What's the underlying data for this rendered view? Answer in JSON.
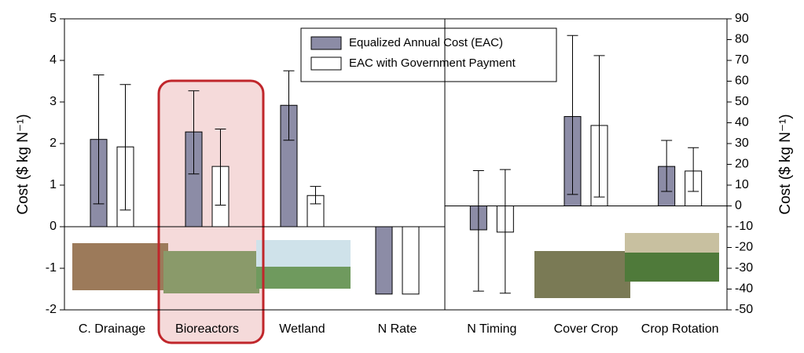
{
  "chart_data": [
    {
      "type": "bar",
      "ylabel": "Cost ($ kg N⁻¹)",
      "categories": [
        "C. Drainage",
        "Bioreactors",
        "Wetland",
        "N Rate"
      ],
      "series": [
        {
          "name": "Equalized Annual Cost (EAC)",
          "color": "#8c8ca6",
          "values": [
            2.1,
            2.28,
            2.92,
            -1.62
          ],
          "lower": [
            0.55,
            1.27,
            2.08,
            null
          ],
          "upper": [
            3.65,
            3.27,
            3.75,
            null
          ]
        },
        {
          "name": "EAC with Government Payment",
          "color": "#ffffff",
          "values": [
            1.92,
            1.45,
            0.75,
            -1.62
          ],
          "lower": [
            0.4,
            0.52,
            0.55,
            null
          ],
          "upper": [
            3.42,
            2.35,
            0.97,
            null
          ]
        }
      ],
      "ylim": [
        -2,
        5
      ],
      "yticks": [
        -2,
        -1,
        0,
        1,
        2,
        3,
        4,
        5
      ]
    },
    {
      "type": "bar",
      "ylabel": "Cost ($ kg N⁻¹)",
      "categories": [
        "N Timing",
        "Cover Crop",
        "Crop Rotation"
      ],
      "series": [
        {
          "name": "Equalized Annual Cost (EAC)",
          "color": "#8c8ca6",
          "values": [
            -11.5,
            43,
            19
          ],
          "lower": [
            -41,
            5.5,
            7
          ],
          "upper": [
            17,
            82,
            31.5
          ]
        },
        {
          "name": "EAC with Government Payment",
          "color": "#ffffff",
          "values": [
            -12.6,
            38.7,
            16.8
          ],
          "lower": [
            -42,
            4.3,
            7
          ],
          "upper": [
            17.5,
            72.3,
            28
          ]
        }
      ],
      "ylim": [
        -50,
        90
      ],
      "yticks": [
        -50,
        -40,
        -30,
        -20,
        -10,
        0,
        10,
        20,
        30,
        40,
        50,
        60,
        70,
        80,
        90
      ]
    }
  ]
}
